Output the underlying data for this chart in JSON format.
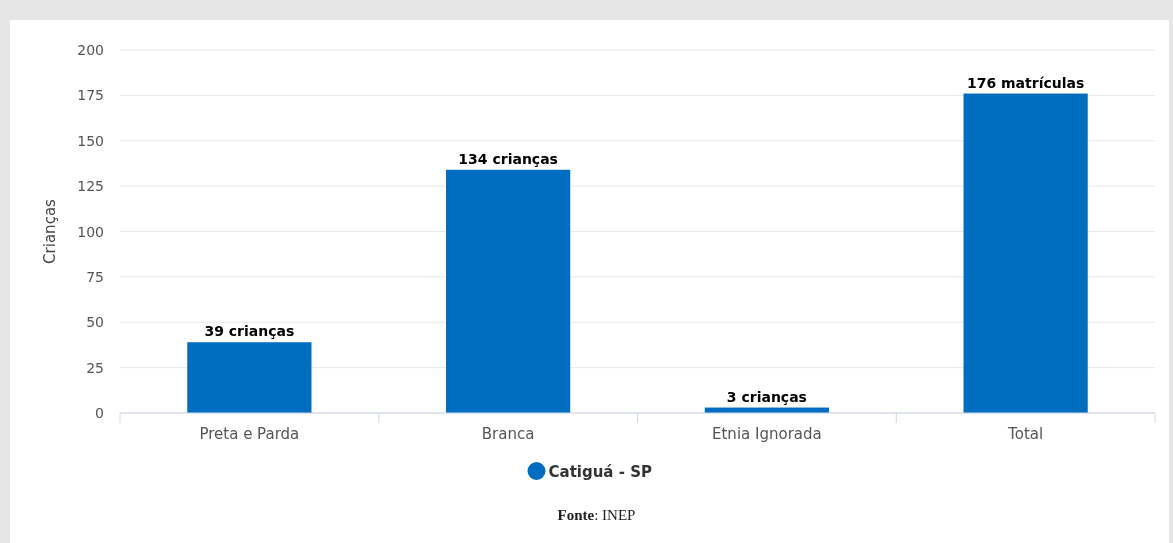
{
  "chart_data": {
    "type": "bar",
    "ylabel": "Crianças",
    "categories": [
      "Preta e Parda",
      "Branca",
      "Etnia Ignorada",
      "Total"
    ],
    "series": [
      {
        "name": "Catiguá - SP",
        "color": "#006dc1",
        "values": [
          39,
          134,
          3,
          176
        ],
        "value_labels": [
          "39 crianças",
          "134 crianças",
          "3 crianças",
          "176 matrículas"
        ]
      }
    ],
    "ylim": [
      0,
      200
    ],
    "yticks": [
      0,
      25,
      50,
      75,
      100,
      125,
      150,
      175,
      200
    ],
    "grid": "y",
    "legend": "bottom",
    "annotations": [
      "Fonte: INEP"
    ]
  }
}
